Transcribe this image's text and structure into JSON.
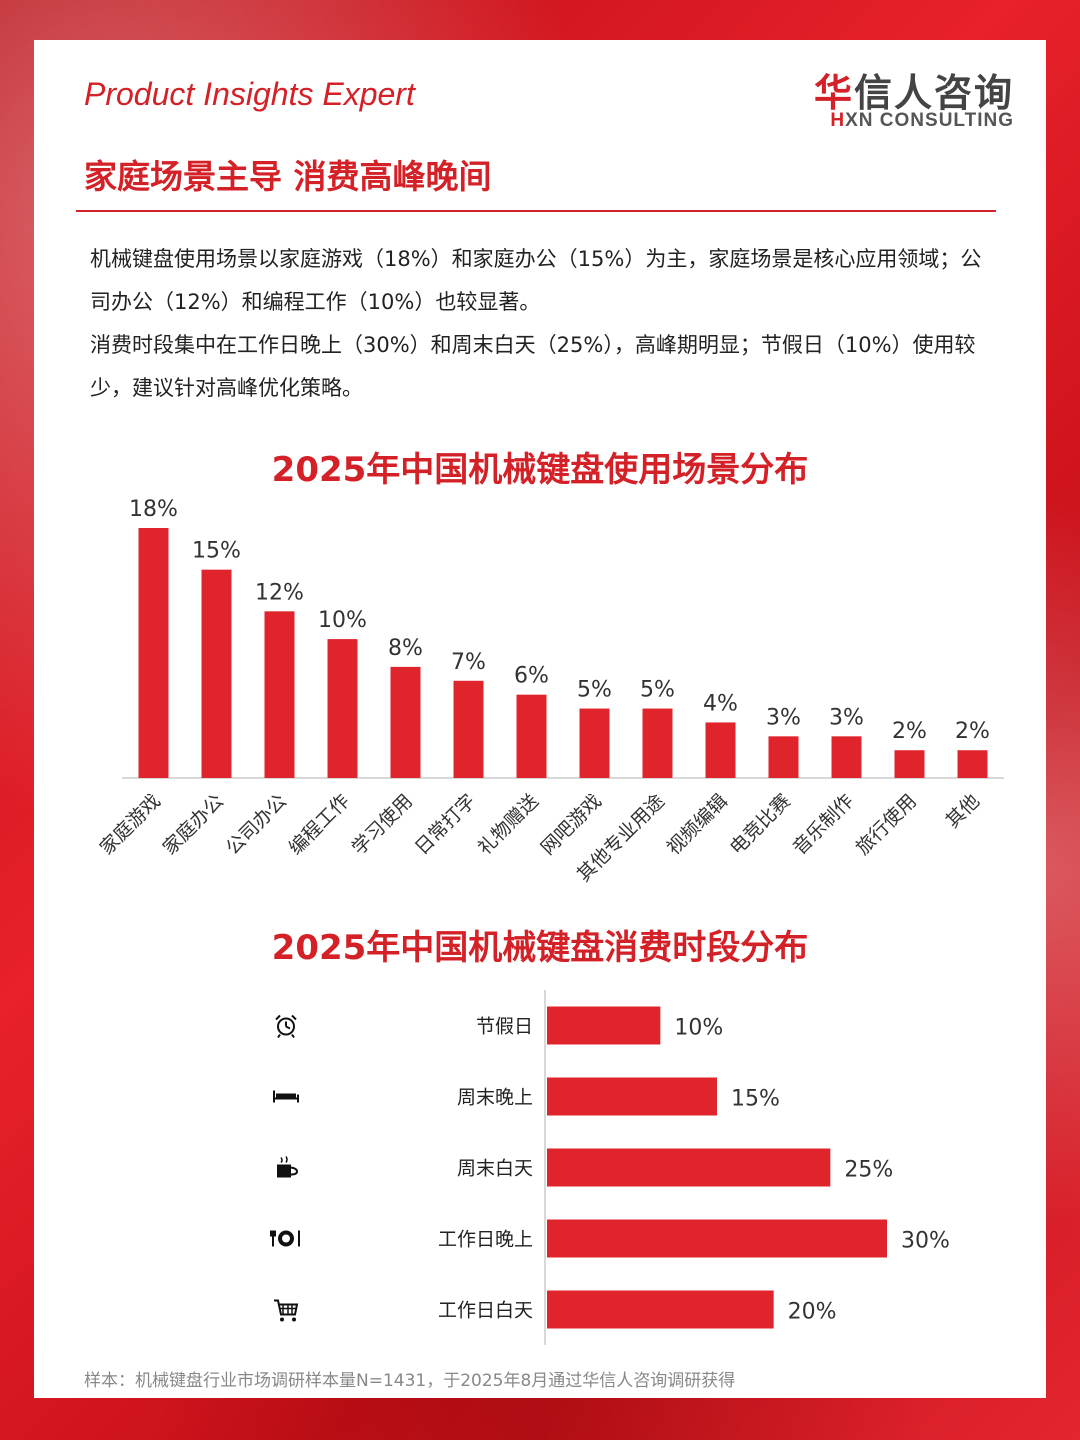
{
  "brand": {
    "tagline": "Product Insights Expert",
    "logo_cn_first": "华",
    "logo_cn_rest": "信人咨询",
    "logo_en_mark": "H",
    "logo_en_rest": "XN CONSULTING"
  },
  "headline": "家庭场景主导 消费高峰晚间",
  "paragraphs": [
    "机械键盘使用场景以家庭游戏（18%）和家庭办公（15%）为主，家庭场景是核心应用领域；公司办公（12%）和编程工作（10%）也较显著。",
    "消费时段集中在工作日晚上（30%）和周末白天（25%），高峰期明显；节假日（10%）使用较少，建议针对高峰优化策略。"
  ],
  "footnote": "样本：机械键盘行业市场调研样本量N=1431，于2025年8月通过华信人咨询调研获得",
  "colors": {
    "accent": "#d42027",
    "bar": "#e0242b"
  },
  "chart_data": [
    {
      "type": "bar",
      "title": "2025年中国机械键盘使用场景分布",
      "categories": [
        "家庭游戏",
        "家庭办公",
        "公司办公",
        "编程工作",
        "学习使用",
        "日常打字",
        "礼物赠送",
        "网吧游戏",
        "其他专业用途",
        "视频编辑",
        "电竞比赛",
        "音乐制作",
        "旅行使用",
        "其他"
      ],
      "values": [
        18,
        15,
        12,
        10,
        8,
        7,
        6,
        5,
        5,
        4,
        3,
        3,
        2,
        2
      ],
      "value_labels": [
        "18%",
        "15%",
        "12%",
        "10%",
        "8%",
        "7%",
        "6%",
        "5%",
        "5%",
        "4%",
        "3%",
        "3%",
        "2%",
        "2%"
      ],
      "unit": "%",
      "ylim": [
        0,
        18
      ],
      "grid": false,
      "legend": "none"
    },
    {
      "type": "bar",
      "orientation": "horizontal",
      "title": "2025年中国机械键盘消费时段分布",
      "categories": [
        "节假日",
        "周末晚上",
        "周末白天",
        "工作日晚上",
        "工作日白天"
      ],
      "icons": [
        "alarm-clock-icon",
        "bed-icon",
        "coffee-cup-icon",
        "dining-icon",
        "shopping-cart-icon"
      ],
      "values": [
        10,
        15,
        25,
        30,
        20
      ],
      "value_labels": [
        "10%",
        "15%",
        "25%",
        "30%",
        "20%"
      ],
      "unit": "%",
      "xlim": [
        0,
        30
      ],
      "grid": false,
      "legend": "none"
    }
  ]
}
